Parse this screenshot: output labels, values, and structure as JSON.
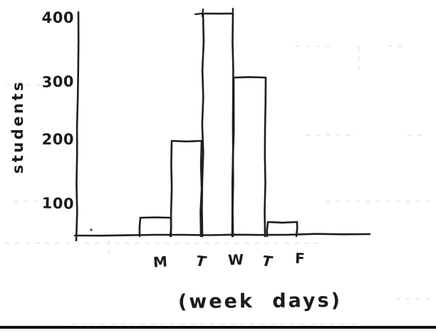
{
  "chart_data": {
    "type": "bar",
    "title": "",
    "categories": [
      "M",
      "T",
      "W",
      "T",
      "F"
    ],
    "values": [
      50,
      200,
      400,
      300,
      50
    ],
    "xlabel": "(week days)",
    "ylabel": "students",
    "y_ticks": [
      100,
      200,
      300,
      400
    ],
    "ylim": [
      0,
      400
    ],
    "grid": false,
    "legend": "none",
    "style": "hand-drawn pen sketch on white paper",
    "ink_color": "#1e1e1e",
    "paper_color": "#ffffff"
  }
}
